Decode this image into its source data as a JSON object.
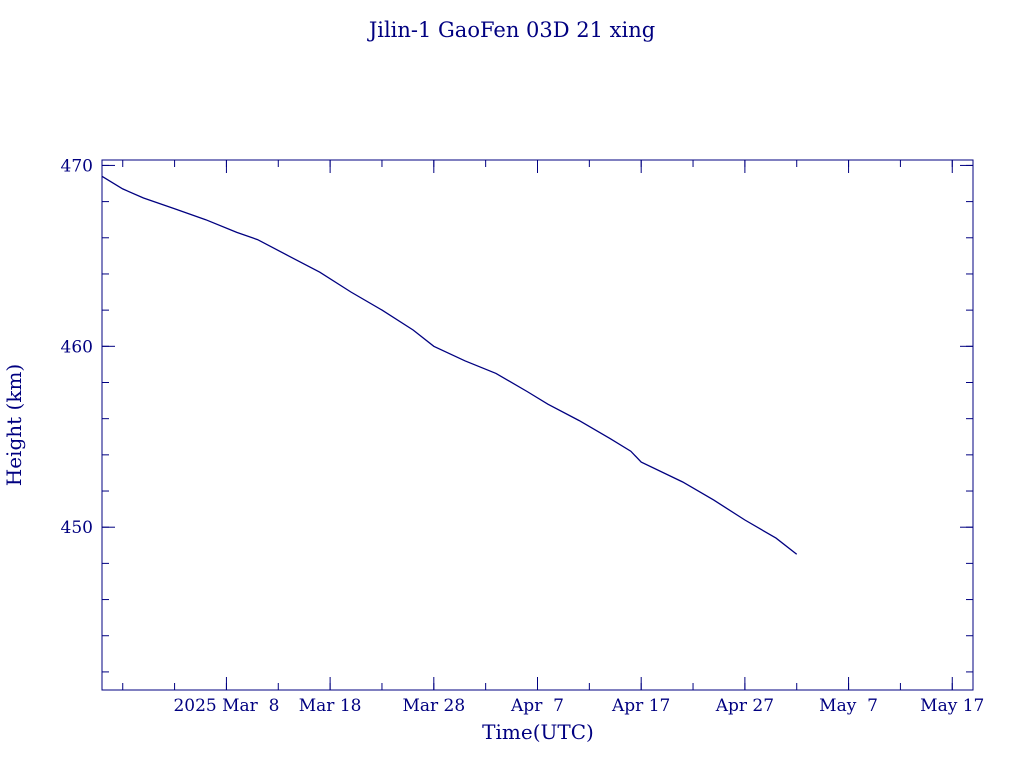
{
  "chart_data": {
    "type": "line",
    "title": "Jilin-1 GaoFen 03D 21 xing",
    "xlabel": "Time(UTC)",
    "ylabel": "Height (km)",
    "x_tick_labels": [
      "2025 Mar  8",
      "Mar 18",
      "Mar 28",
      "Apr  7",
      "Apr 17",
      "Apr 27",
      "May  7",
      "May 17"
    ],
    "y_tick_labels": [
      "450",
      "460",
      "470"
    ],
    "xlim": [
      "2025-02-24",
      "2025-05-19"
    ],
    "ylim": [
      441,
      470.3
    ],
    "x_ticks": [
      "2025-03-08",
      "2025-03-18",
      "2025-03-28",
      "2025-04-07",
      "2025-04-17",
      "2025-04-27",
      "2025-05-07",
      "2025-05-17"
    ],
    "y_major_ticks": [
      450,
      460,
      470
    ],
    "y_minor_tick_step": 2,
    "x_minor_tick_step_days": 5,
    "color": "#000080",
    "series": [
      {
        "x": [
          "2025-02-24",
          "2025-02-26",
          "2025-02-28",
          "2025-03-03",
          "2025-03-06",
          "2025-03-09",
          "2025-03-11",
          "2025-03-14",
          "2025-03-17",
          "2025-03-20",
          "2025-03-23",
          "2025-03-26",
          "2025-03-28",
          "2025-03-31",
          "2025-04-03",
          "2025-04-06",
          "2025-04-08",
          "2025-04-11",
          "2025-04-14",
          "2025-04-16",
          "2025-04-17",
          "2025-04-21",
          "2025-04-24",
          "2025-04-27",
          "2025-04-30",
          "2025-05-02"
        ],
        "y": [
          469.4,
          468.7,
          468.2,
          467.6,
          467.0,
          466.3,
          465.9,
          465.0,
          464.1,
          463.0,
          462.0,
          460.9,
          460.0,
          459.2,
          458.5,
          457.5,
          456.8,
          455.9,
          454.9,
          454.2,
          453.6,
          452.5,
          451.5,
          450.4,
          449.4,
          448.5
        ]
      }
    ]
  }
}
